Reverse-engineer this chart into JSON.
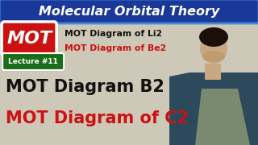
{
  "bg_color": "#cec8b8",
  "title_text": "Molecular Orbital Theory",
  "title_bg": "#1a3898",
  "title_color": "#ffffff",
  "title_outline": "#4488dd",
  "mot_box_color": "#cc1111",
  "mot_text": "MOT",
  "mot_text_color": "#ffffff",
  "lecture_box_color": "#1a6e1a",
  "lecture_text": "Lecture #11",
  "lecture_text_color": "#ffffff",
  "li2_text": "MOT Diagram of Li2",
  "li2_color": "#111111",
  "be2_text": "MOT Diagram of Be2",
  "be2_color": "#cc1111",
  "b2_text": "MOT Diagram B2",
  "b2_color": "#111111",
  "c2_text": "MOT Diagram of C2",
  "c2_color": "#cc1111",
  "person_jacket_color": "#2d4a5c",
  "person_shirt_color": "#7a8a70",
  "person_skin_color": "#c8a882",
  "person_hair_color": "#1a1008"
}
